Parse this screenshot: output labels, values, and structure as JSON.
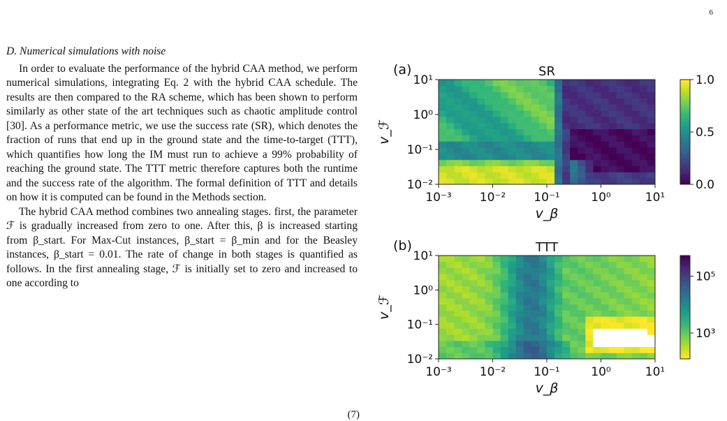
{
  "page_number": "6",
  "section_title": "D. Numerical simulations with noise",
  "paragraphs": [
    "In order to evaluate the performance of the hybrid CAA method, we perform numerical simulations, integrating Eq. 2 with the hybrid CAA schedule. The results are then compared to the RA scheme, which has been shown to perform similarly as other state of the art techniques such as chaotic amplitude control [30]. As a performance metric, we use the success rate (SR), which denotes the fraction of runs that end up in the ground state and the time-to-target (TTT), which quantifies how long the IM must run to achieve a 99% probability of reaching the ground state. The TTT metric therefore captures both the runtime and the success rate of the algorithm. The formal definition of TTT and details on how it is computed can be found in the Methods section.",
    "The hybrid CAA method combines two annealing stages. first, the parameter ℱ is gradually increased from zero to one. After this, β is increased starting from β_start. For Max-Cut instances, β_start = β_min and for the Beasley instances, β_start = 0.01. The rate of change in both stages is quantified as follows. In the first annealing stage, ℱ is initially set to zero and increased to one according to"
  ],
  "equation": {
    "number": "(7)"
  },
  "chart_data": [
    {
      "panel": "(a)",
      "type": "heatmap",
      "title": "SR",
      "xlabel": "v_β",
      "ylabel": "v_ℱ",
      "x_scale": "log",
      "x_range": [
        0.001,
        10
      ],
      "y_scale": "log",
      "y_range": [
        0.01,
        10
      ],
      "x_ticks": [
        "10⁻³",
        "10⁻²",
        "10⁻¹",
        "10⁰",
        "10¹"
      ],
      "y_ticks": [
        "10⁻²",
        "10⁻¹",
        "10⁰",
        "10¹"
      ],
      "colorbar": {
        "scale": "linear",
        "range": [
          0,
          1
        ],
        "ticks": [
          "0.0",
          "0.5",
          "1.0"
        ],
        "colormap": "viridis"
      },
      "grid": false
    },
    {
      "panel": "(b)",
      "type": "heatmap",
      "title": "TTT",
      "xlabel": "v_β",
      "ylabel": "v_ℱ",
      "x_scale": "log",
      "x_range": [
        0.001,
        10
      ],
      "y_scale": "log",
      "y_range": [
        0.01,
        10
      ],
      "x_ticks": [
        "10⁻³",
        "10⁻²",
        "10⁻¹",
        "10⁰",
        "10¹"
      ],
      "y_ticks": [
        "10⁻²",
        "10⁻¹",
        "10⁰",
        "10¹"
      ],
      "colorbar": {
        "scale": "log",
        "ticks": [
          "10³",
          "10⁵"
        ],
        "colormap": "viridis_r"
      },
      "missing_region": "white (no success)",
      "grid": false
    }
  ]
}
